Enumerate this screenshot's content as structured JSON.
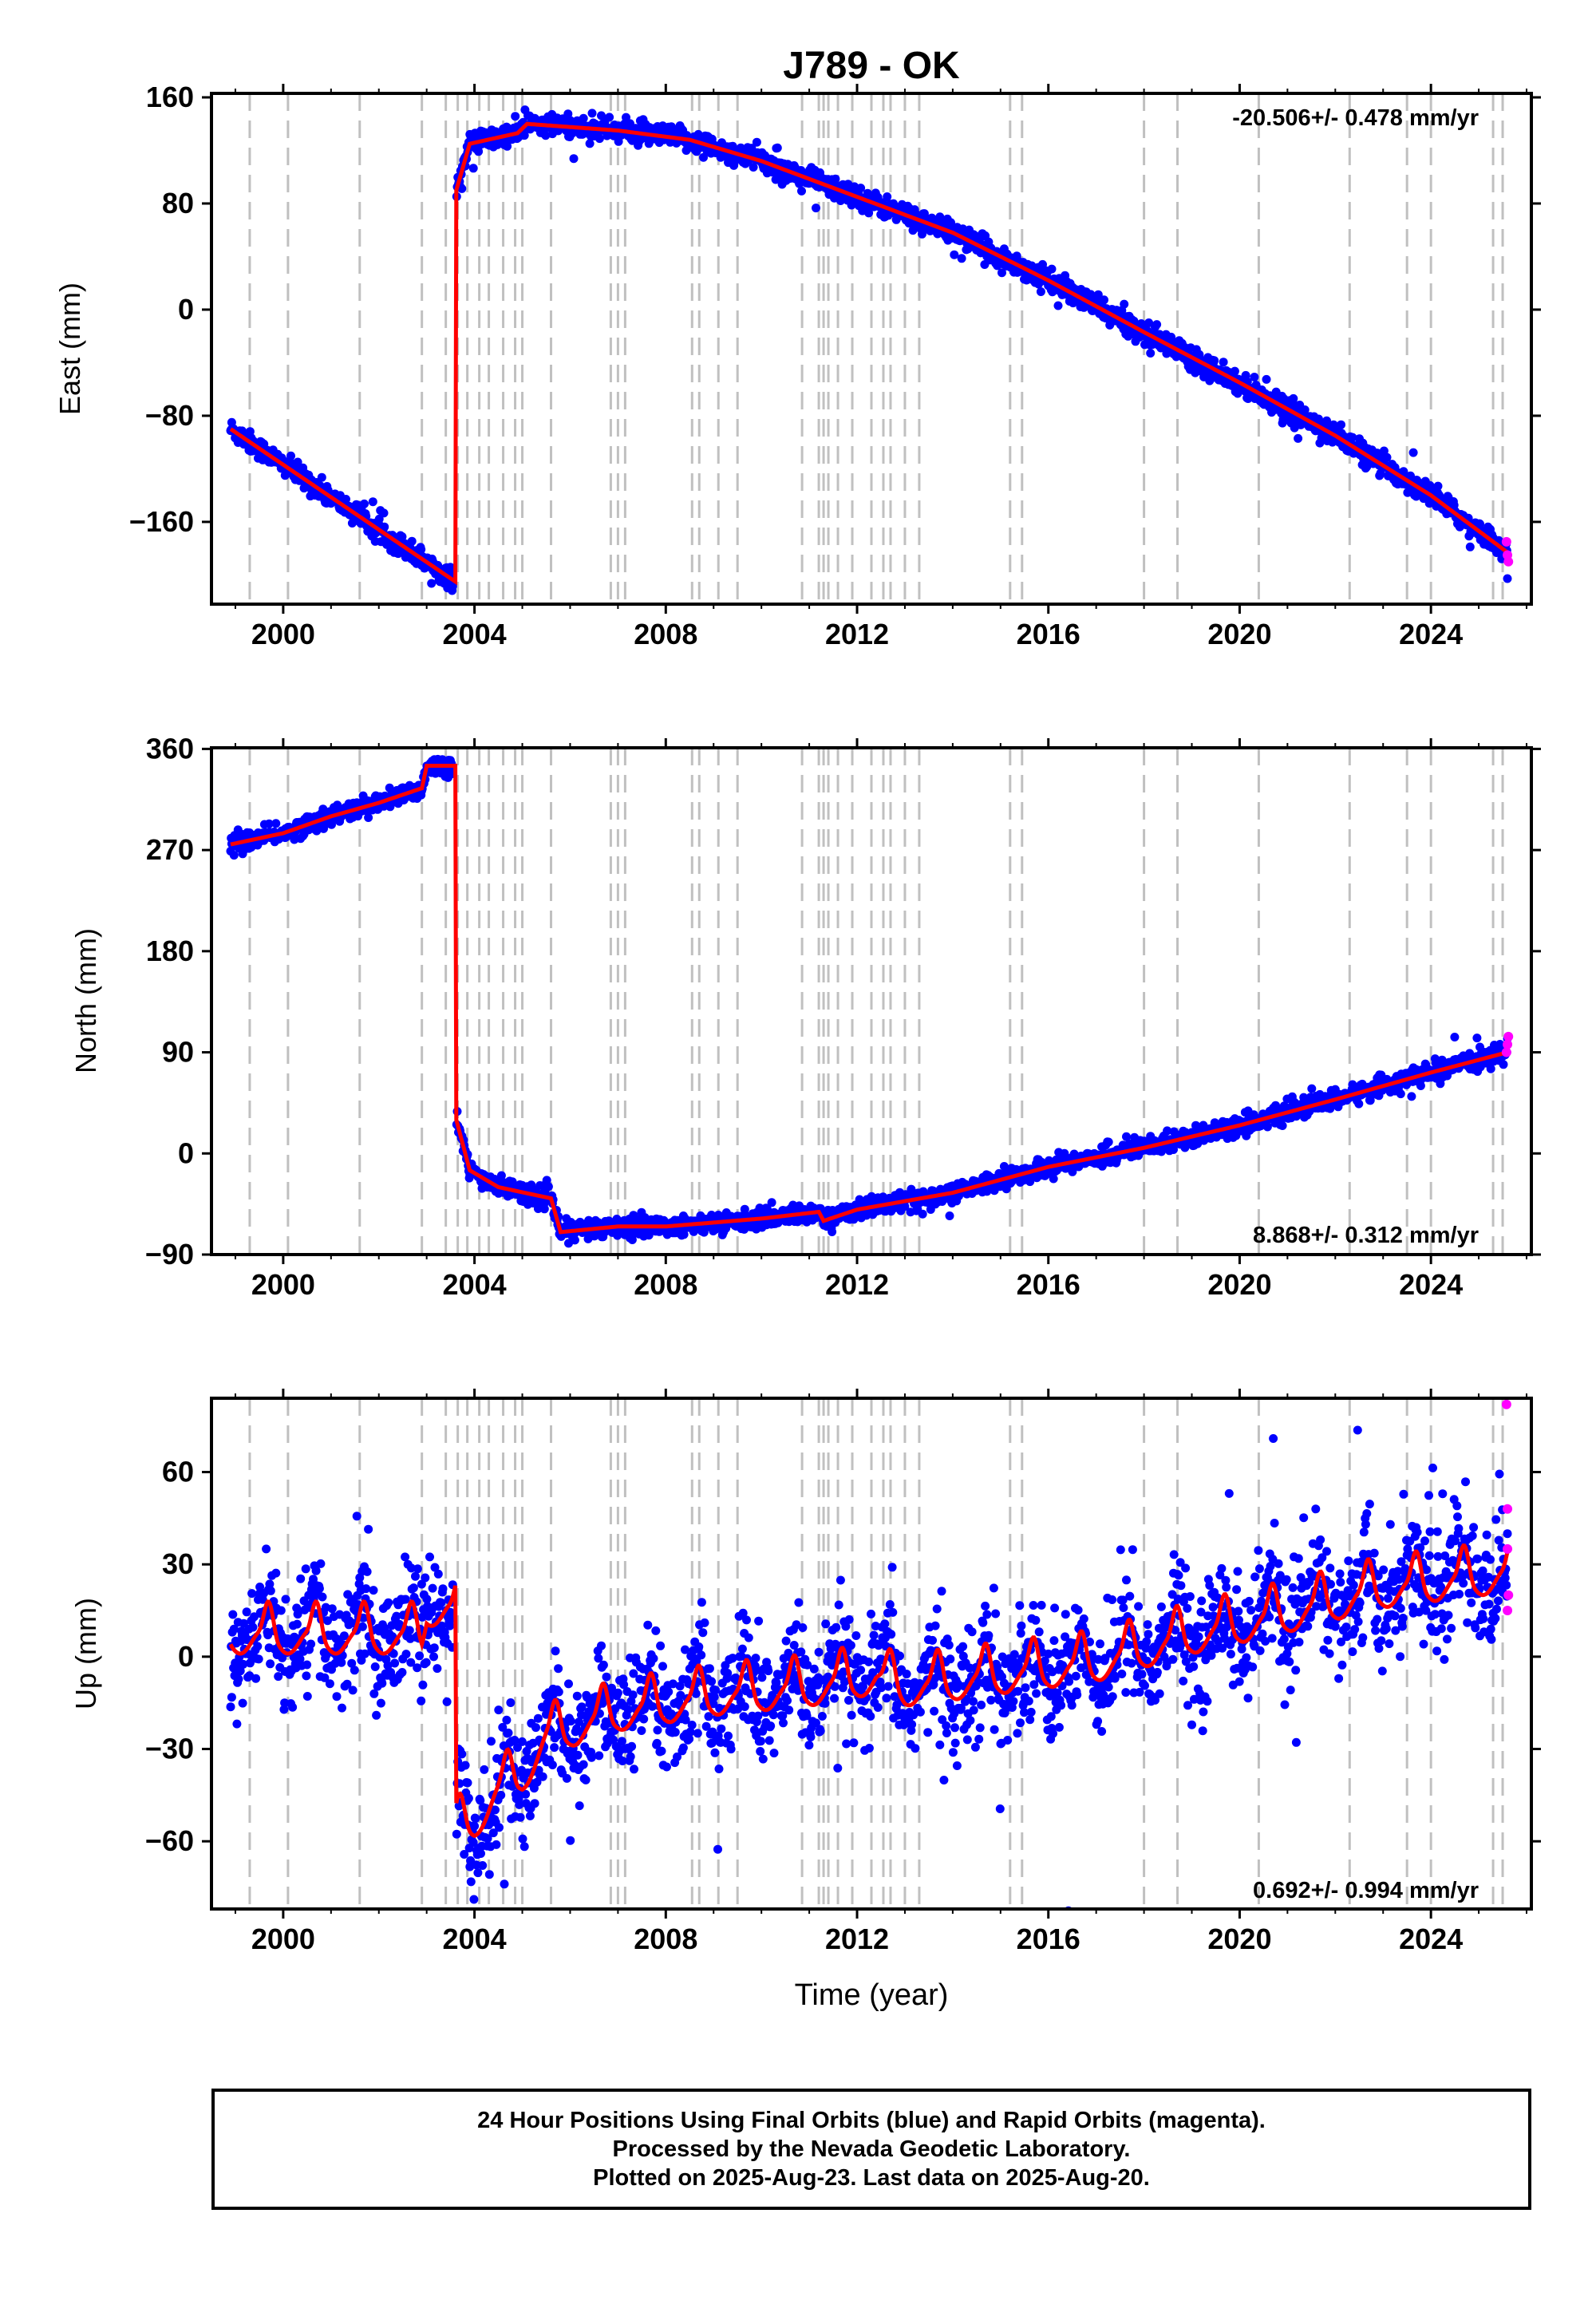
{
  "title": "J789 - OK",
  "xlabel": "Time (year)",
  "colors": {
    "final_orbits": "#0000ff",
    "rapid_orbits": "#ff00ff",
    "model": "#ff0000",
    "event_lines": "#c0c0c0"
  },
  "footer": {
    "line1": "24 Hour Positions Using Final Orbits (blue) and Rapid Orbits (magenta).",
    "line2": "Processed by the Nevada Geodetic Laboratory.",
    "line3": "Plotted on 2025-Aug-23. Last data on 2025-Aug-20."
  },
  "chart_data": [
    {
      "type": "scatter",
      "ylabel": "East (mm)",
      "rate_label": "-20.506+/- 0.478 mm/yr",
      "rate_position": "top-right",
      "xlim": [
        1998.5,
        2026.1
      ],
      "ylim": [
        -222,
        163
      ],
      "xticks": [
        2000,
        2004,
        2008,
        2012,
        2016,
        2020,
        2024
      ],
      "yticks": [
        -160,
        -80,
        0,
        80,
        160
      ],
      "ytick_labels": [
        "−160",
        "−80",
        "0",
        "80",
        "160"
      ],
      "model_trend": [
        [
          1998.9,
          -90
        ],
        [
          2003.6,
          -205
        ],
        [
          2003.62,
          90
        ],
        [
          2003.9,
          125
        ],
        [
          2004.9,
          133
        ],
        [
          2005.1,
          140
        ],
        [
          2007.0,
          135
        ],
        [
          2008.5,
          128
        ],
        [
          2010.0,
          112
        ],
        [
          2012.0,
          85
        ],
        [
          2014.0,
          58
        ],
        [
          2016.0,
          22
        ],
        [
          2018.0,
          -17
        ],
        [
          2020.0,
          -55
        ],
        [
          2022.0,
          -95
        ],
        [
          2024.0,
          -140
        ],
        [
          2025.6,
          -183
        ]
      ],
      "noise_mm": 4,
      "rapid_points": [
        [
          2025.58,
          -175
        ],
        [
          2025.6,
          -185
        ],
        [
          2025.62,
          -190
        ]
      ]
    },
    {
      "type": "scatter",
      "ylabel": "North (mm)",
      "rate_label": "8.868+/- 0.312 mm/yr",
      "rate_position": "bottom-right",
      "xlim": [
        1998.5,
        2026.1
      ],
      "ylim": [
        -90,
        361
      ],
      "xticks": [
        2000,
        2004,
        2008,
        2012,
        2016,
        2020,
        2024
      ],
      "yticks": [
        -90,
        0,
        90,
        180,
        270,
        360
      ],
      "ytick_labels": [
        "−90",
        "0",
        "90",
        "180",
        "270",
        "360"
      ],
      "model_trend": [
        [
          1998.9,
          275
        ],
        [
          2000.0,
          285
        ],
        [
          2001.0,
          300
        ],
        [
          2002.0,
          312
        ],
        [
          2002.9,
          325
        ],
        [
          2003.0,
          345
        ],
        [
          2003.6,
          345
        ],
        [
          2003.62,
          30
        ],
        [
          2003.9,
          -15
        ],
        [
          2004.5,
          -30
        ],
        [
          2005.6,
          -40
        ],
        [
          2005.8,
          -70
        ],
        [
          2007.0,
          -65
        ],
        [
          2008.0,
          -65
        ],
        [
          2010.0,
          -58
        ],
        [
          2011.2,
          -52
        ],
        [
          2011.3,
          -60
        ],
        [
          2012.0,
          -50
        ],
        [
          2014.0,
          -35
        ],
        [
          2016.0,
          -12
        ],
        [
          2018.0,
          5
        ],
        [
          2020.0,
          25
        ],
        [
          2022.0,
          48
        ],
        [
          2024.0,
          72
        ],
        [
          2025.6,
          90
        ]
      ],
      "noise_mm": 4,
      "rapid_points": [
        [
          2025.58,
          90
        ],
        [
          2025.6,
          97
        ],
        [
          2025.62,
          104
        ]
      ]
    },
    {
      "type": "scatter",
      "ylabel": "Up (mm)",
      "rate_label": "0.692+/- 0.994 mm/yr",
      "rate_position": "bottom-right",
      "xlim": [
        1998.5,
        2026.1
      ],
      "ylim": [
        -82,
        84
      ],
      "xticks": [
        2000,
        2004,
        2008,
        2012,
        2016,
        2020,
        2024
      ],
      "yticks": [
        -60,
        -30,
        0,
        30,
        60
      ],
      "ytick_labels": [
        "−60",
        "−30",
        "0",
        "30",
        "60"
      ],
      "model_trend": [
        [
          1998.9,
          5
        ],
        [
          2002.9,
          5
        ],
        [
          2003.0,
          14
        ],
        [
          2003.6,
          14
        ],
        [
          2003.62,
          -58
        ],
        [
          2004.0,
          -55
        ],
        [
          2004.5,
          -45
        ],
        [
          2005.0,
          -40
        ],
        [
          2005.5,
          -28
        ],
        [
          2007.0,
          -20
        ],
        [
          2009.0,
          -15
        ],
        [
          2011.0,
          -12
        ],
        [
          2012.4,
          -8
        ],
        [
          2012.6,
          -10
        ],
        [
          2013.0,
          -12
        ],
        [
          2015.0,
          -8
        ],
        [
          2017.0,
          -4
        ],
        [
          2019.0,
          5
        ],
        [
          2021.0,
          12
        ],
        [
          2023.0,
          20
        ],
        [
          2025.6,
          25
        ]
      ],
      "seasonal_amplitude_mm": 8,
      "noise_mm": 9,
      "rapid_points": [
        [
          2025.58,
          82
        ],
        [
          2025.6,
          48
        ],
        [
          2025.6,
          35
        ],
        [
          2025.62,
          20
        ],
        [
          2025.6,
          15
        ]
      ]
    }
  ],
  "event_lines_years": [
    1999.3,
    2000.1,
    2001.6,
    2002.9,
    2003.4,
    2003.65,
    2003.85,
    2004.1,
    2004.3,
    2004.6,
    2004.85,
    2005.0,
    2005.6,
    2006.85,
    2007.0,
    2007.15,
    2008.55,
    2008.7,
    2009.1,
    2009.5,
    2010.85,
    2011.2,
    2011.3,
    2011.4,
    2011.6,
    2011.9,
    2012.3,
    2012.55,
    2012.7,
    2013.0,
    2013.3,
    2015.2,
    2015.45,
    2018.0,
    2018.7,
    2020.4,
    2022.3,
    2023.5,
    2024.0,
    2025.3,
    2025.5
  ]
}
